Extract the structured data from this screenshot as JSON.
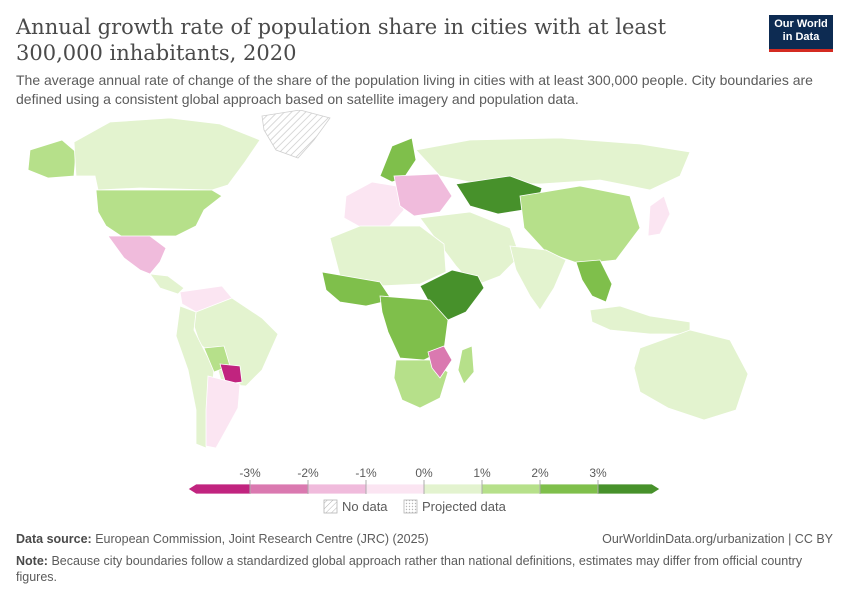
{
  "header": {
    "title": "Annual growth rate of population share in cities with at least 300,000 inhabitants, 2020",
    "subtitle": "The average annual rate of change of the share of the population living in cities with at least 300,000 people. City boundaries are defined using a consistent global approach based on satellite imagery and population data.",
    "logo_line1": "Our World",
    "logo_line2": "in Data"
  },
  "legend": {
    "ticks": [
      "-3%",
      "-2%",
      "-1%",
      "0%",
      "1%",
      "2%",
      "3%"
    ],
    "bins": [
      {
        "color": "#c1247f"
      },
      {
        "color": "#da79b0"
      },
      {
        "color": "#f0bbdc"
      },
      {
        "color": "#fbe5f2"
      },
      {
        "color": "#e3f3cf"
      },
      {
        "color": "#b6e08a"
      },
      {
        "color": "#7fbf4b"
      },
      {
        "color": "#47912b"
      }
    ],
    "no_data_label": "No data",
    "projected_label": "Projected data"
  },
  "footer": {
    "source_label": "Data source:",
    "source_text": "European Commission, Joint Research Centre (JRC) (2025)",
    "link_text": "OurWorldinData.org/urbanization | CC BY",
    "note_label": "Note:",
    "note_text": "Because city boundaries follow a standardized global approach rather than national definitions, estimates may differ from official country figures."
  },
  "map": {
    "regions": [
      {
        "name": "canada",
        "bin": 4
      },
      {
        "name": "usa",
        "bin": 5
      },
      {
        "name": "alaska",
        "bin": 5
      },
      {
        "name": "greenland",
        "bin": -1
      },
      {
        "name": "mexico",
        "bin": 2
      },
      {
        "name": "central-america",
        "bin": 4
      },
      {
        "name": "colombia-venezuela",
        "bin": 3
      },
      {
        "name": "brazil",
        "bin": 4
      },
      {
        "name": "peru-chile",
        "bin": 4
      },
      {
        "name": "bolivia",
        "bin": 5
      },
      {
        "name": "paraguay",
        "bin": 0
      },
      {
        "name": "argentina",
        "bin": 3
      },
      {
        "name": "scandinavia",
        "bin": 6
      },
      {
        "name": "western-europe",
        "bin": 3
      },
      {
        "name": "eastern-europe",
        "bin": 2
      },
      {
        "name": "russia",
        "bin": 4
      },
      {
        "name": "kazakhstan",
        "bin": 7
      },
      {
        "name": "middle-east",
        "bin": 4
      },
      {
        "name": "china",
        "bin": 5
      },
      {
        "name": "india",
        "bin": 4
      },
      {
        "name": "southeast-asia",
        "bin": 6
      },
      {
        "name": "japan",
        "bin": 3
      },
      {
        "name": "indonesia",
        "bin": 4
      },
      {
        "name": "australia",
        "bin": 4
      },
      {
        "name": "north-africa",
        "bin": 4
      },
      {
        "name": "west-africa",
        "bin": 6
      },
      {
        "name": "east-africa",
        "bin": 7
      },
      {
        "name": "central-africa",
        "bin": 6
      },
      {
        "name": "southern-africa",
        "bin": 5
      },
      {
        "name": "mozambique",
        "bin": 1
      },
      {
        "name": "madagascar",
        "bin": 5
      }
    ]
  }
}
